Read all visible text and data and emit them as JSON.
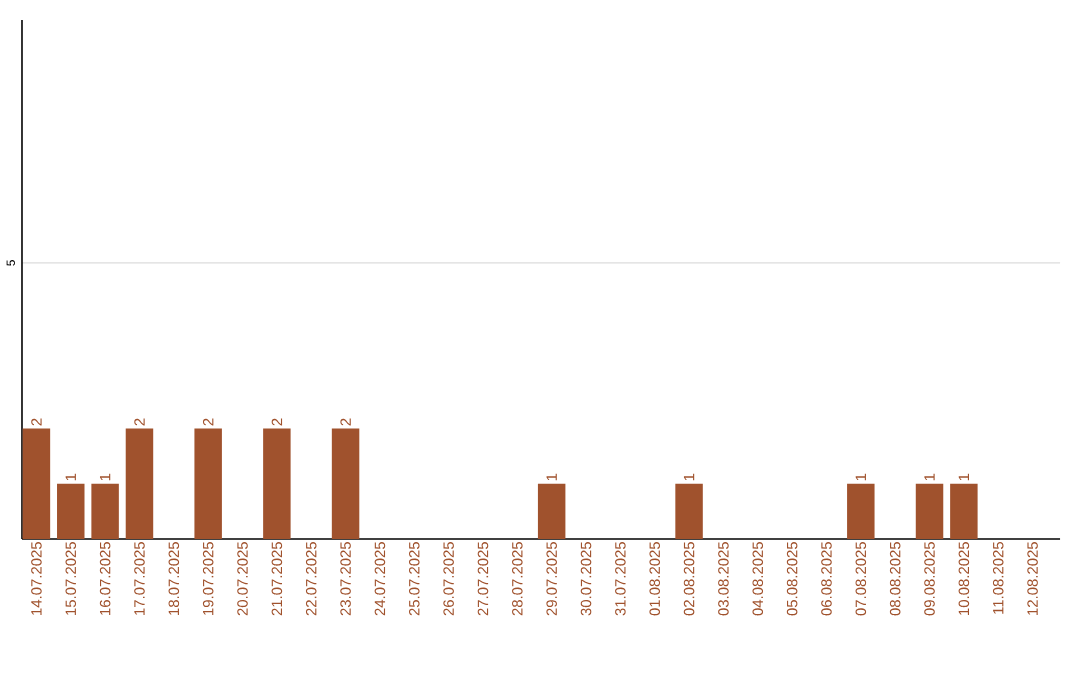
{
  "chart_data": {
    "type": "bar",
    "categories": [
      "14.07.2025",
      "15.07.2025",
      "16.07.2025",
      "17.07.2025",
      "18.07.2025",
      "19.07.2025",
      "20.07.2025",
      "21.07.2025",
      "22.07.2025",
      "23.07.2025",
      "24.07.2025",
      "25.07.2025",
      "26.07.2025",
      "27.07.2025",
      "28.07.2025",
      "29.07.2025",
      "30.07.2025",
      "31.07.2025",
      "01.08.2025",
      "02.08.2025",
      "03.08.2025",
      "04.08.2025",
      "05.08.2025",
      "06.08.2025",
      "07.08.2025",
      "08.08.2025",
      "09.08.2025",
      "10.08.2025",
      "11.08.2025",
      "12.08.2025"
    ],
    "values": [
      2,
      1,
      1,
      2,
      0,
      2,
      0,
      2,
      0,
      2,
      0,
      0,
      0,
      0,
      0,
      1,
      0,
      0,
      0,
      1,
      0,
      0,
      0,
      0,
      1,
      0,
      1,
      1,
      0,
      0
    ],
    "value_labels": [
      "2",
      "1",
      "1",
      "2",
      null,
      "2",
      null,
      "2",
      null,
      "2",
      null,
      null,
      null,
      null,
      null,
      "1",
      null,
      null,
      null,
      "1",
      null,
      null,
      null,
      null,
      "1",
      null,
      "1",
      "1",
      null,
      null
    ],
    "color": "#a0522d",
    "ylim": [
      0,
      9.4
    ],
    "yticks": [
      5
    ],
    "grid": "y"
  }
}
